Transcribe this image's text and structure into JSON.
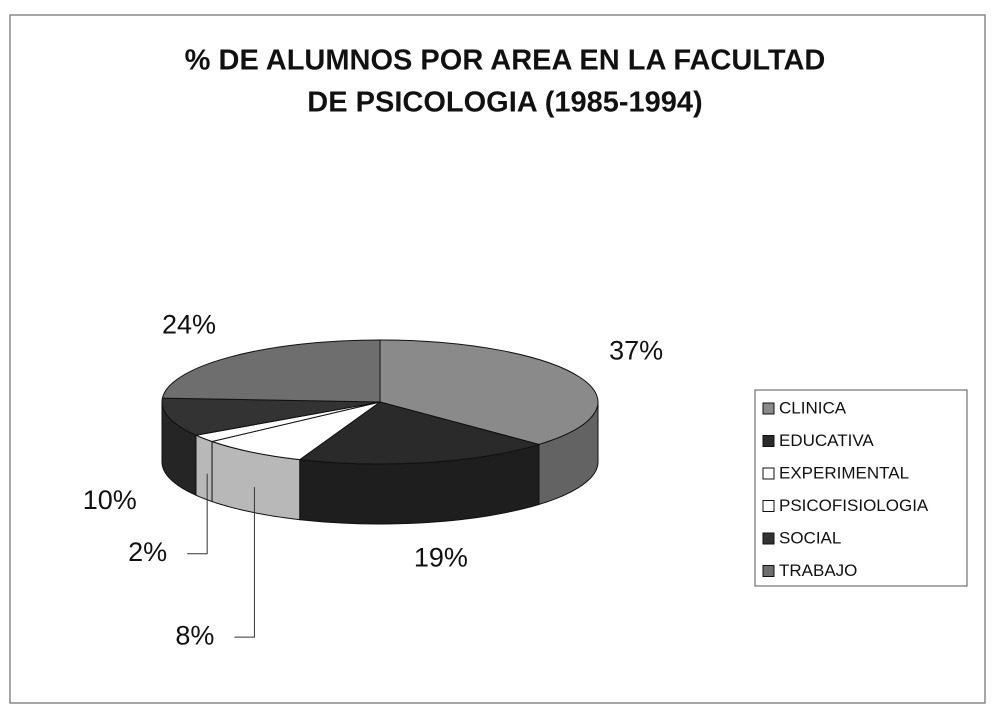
{
  "chart_data": {
    "type": "pie",
    "title": [
      "% DE ALUMNOS POR AREA EN LA FACULTAD",
      "DE PSICOLOGIA (1985-1994)"
    ],
    "categories": [
      "CLINICA",
      "EDUCATIVA",
      "EXPERIMENTAL",
      "PSICOFISIOLOGIA",
      "SOCIAL",
      "TRABAJO"
    ],
    "values": [
      37,
      19,
      8,
      2,
      10,
      24
    ],
    "value_labels": [
      "37%",
      "19%",
      "8%",
      "2%",
      "10%",
      "24%"
    ],
    "colors": [
      "#8a8a8a",
      "#2a2a2a",
      "#ffffff",
      "#ffffff",
      "#333333",
      "#6e6e6e"
    ],
    "legend": "right"
  }
}
